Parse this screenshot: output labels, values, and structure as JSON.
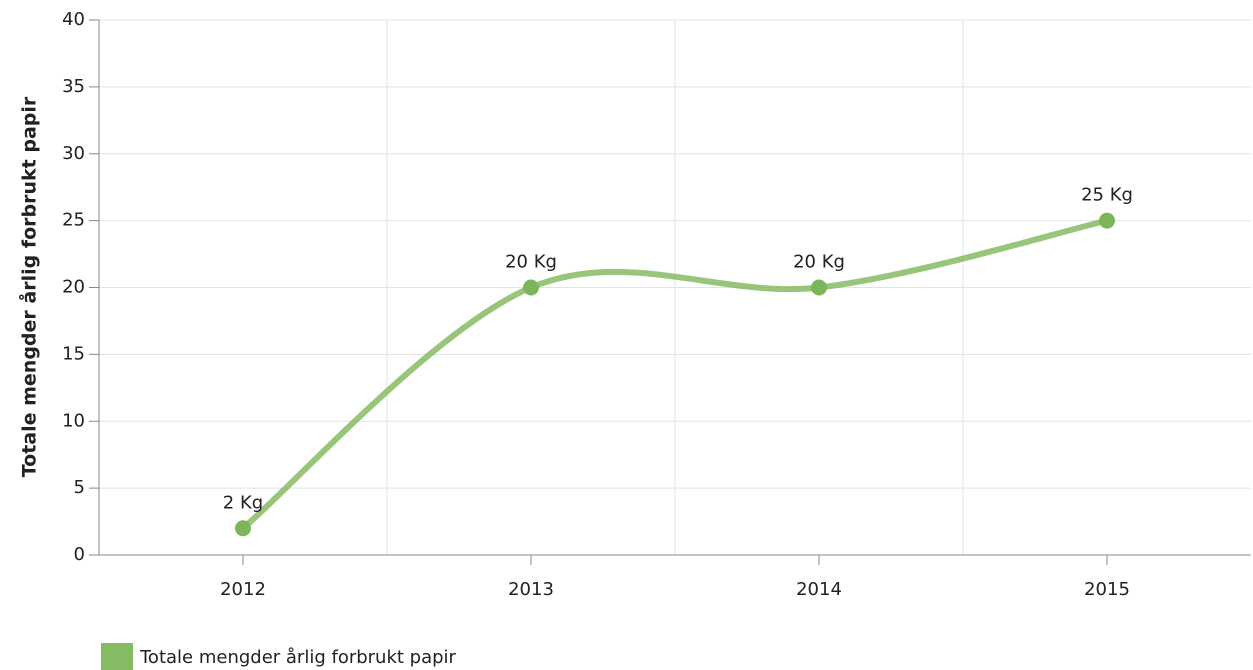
{
  "chart_data": {
    "type": "line",
    "ylabel": "Totale mengder årlig forbrukt papir",
    "categories": [
      "2012",
      "2013",
      "2014",
      "2015"
    ],
    "series": [
      {
        "name": "Totale mengder årlig forbrukt papir",
        "color": "#86bb63",
        "values": [
          2,
          20,
          20,
          25
        ],
        "value_labels": [
          "2 Kg",
          "20 Kg",
          "20 Kg",
          "25 Kg"
        ]
      }
    ],
    "ylim": [
      0,
      40
    ],
    "yticks": [
      0,
      5,
      10,
      15,
      20,
      25,
      30,
      35,
      40
    ],
    "grid": true,
    "legend": "bottom-left",
    "smooth": true
  }
}
